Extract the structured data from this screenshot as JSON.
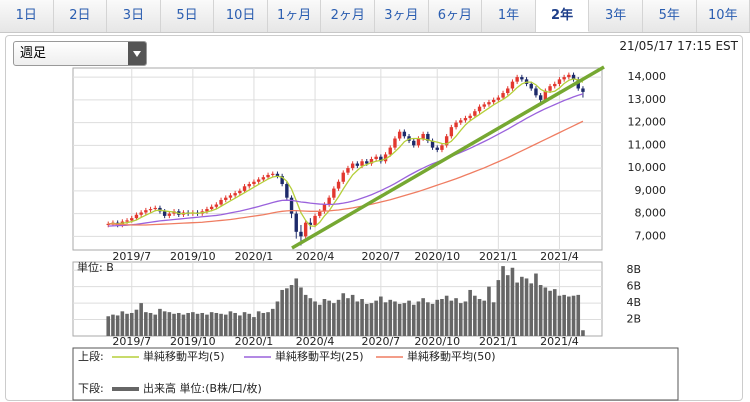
{
  "tabs": [
    {
      "label": "1日"
    },
    {
      "label": "2日"
    },
    {
      "label": "3日"
    },
    {
      "label": "5日"
    },
    {
      "label": "10日"
    },
    {
      "label": "1ヶ月"
    },
    {
      "label": "2ヶ月"
    },
    {
      "label": "3ヶ月"
    },
    {
      "label": "6ヶ月"
    },
    {
      "label": "1年"
    },
    {
      "label": "2年",
      "selected": true
    },
    {
      "label": "3年"
    },
    {
      "label": "5年"
    },
    {
      "label": "10年"
    }
  ],
  "period_select": "週足",
  "timestamp": "21/05/17 17:15 EST",
  "chart_data": [
    {
      "type": "candlestick",
      "legend_label": "上段:",
      "categories": [
        null,
        null,
        null,
        null,
        null,
        "2019/7",
        null,
        null,
        null,
        null,
        null,
        null,
        null,
        null,
        null,
        null,
        null,
        null,
        "2019/10",
        null,
        null,
        null,
        null,
        null,
        null,
        null,
        null,
        null,
        null,
        null,
        null,
        "2020/1",
        null,
        null,
        null,
        null,
        null,
        null,
        null,
        null,
        null,
        null,
        null,
        null,
        "2020/4",
        null,
        null,
        null,
        null,
        null,
        null,
        null,
        null,
        null,
        null,
        null,
        null,
        null,
        "2020/7",
        null,
        null,
        null,
        null,
        null,
        null,
        null,
        null,
        null,
        null,
        null,
        "2020/10",
        null,
        null,
        null,
        null,
        null,
        null,
        null,
        null,
        null,
        null,
        null,
        null,
        "2021/1",
        null,
        null,
        null,
        null,
        null,
        null,
        null,
        null,
        null,
        null,
        null,
        null,
        "2021/4",
        null,
        null,
        null,
        null,
        null
      ],
      "open": [
        7500,
        7550,
        7600,
        7500,
        7650,
        7700,
        7800,
        7950,
        8050,
        8150,
        8200,
        8250,
        8100,
        7900,
        8000,
        8100,
        7950,
        8050,
        8000,
        8050,
        8000,
        8100,
        8200,
        8300,
        8400,
        8600,
        8700,
        8800,
        8900,
        9000,
        9200,
        9300,
        9400,
        9500,
        9600,
        9700,
        9750,
        9650,
        9300,
        8700,
        8000,
        7200,
        7000,
        7600,
        7500,
        7900,
        8100,
        8400,
        8700,
        9100,
        9400,
        9800,
        10000,
        10200,
        10100,
        10300,
        10200,
        10400,
        10500,
        10300,
        10600,
        10900,
        11300,
        11600,
        11400,
        11200,
        11000,
        11300,
        11500,
        11200,
        10900,
        10800,
        11000,
        11400,
        11800,
        12000,
        12100,
        12200,
        12300,
        12500,
        12700,
        12800,
        12900,
        13000,
        13100,
        13300,
        13500,
        13800,
        14000,
        13900,
        13700,
        13500,
        13200,
        13000,
        13400,
        13600,
        13700,
        13900,
        14000,
        14100,
        13900,
        13500
      ],
      "high": [
        7650,
        7700,
        7700,
        7750,
        7800,
        7900,
        8050,
        8150,
        8250,
        8300,
        8350,
        8350,
        8200,
        8100,
        8200,
        8200,
        8150,
        8150,
        8150,
        8150,
        8200,
        8300,
        8400,
        8500,
        8700,
        8800,
        8900,
        9000,
        9100,
        9300,
        9400,
        9500,
        9600,
        9700,
        9800,
        9850,
        9850,
        9750,
        9400,
        8800,
        8100,
        7500,
        7700,
        7800,
        8000,
        8200,
        8500,
        8800,
        9200,
        9500,
        9900,
        10100,
        10300,
        10300,
        10400,
        10400,
        10500,
        10600,
        10600,
        10700,
        11000,
        11400,
        11700,
        11700,
        11500,
        11300,
        11400,
        11600,
        11600,
        11300,
        11000,
        11100,
        11500,
        11900,
        12100,
        12200,
        12300,
        12400,
        12600,
        12800,
        12900,
        13000,
        13100,
        13200,
        13400,
        13600,
        13900,
        14100,
        14100,
        14000,
        13800,
        13600,
        13300,
        13500,
        13700,
        13800,
        14000,
        14100,
        14200,
        14200,
        14000,
        13600
      ],
      "low": [
        7400,
        7450,
        7400,
        7400,
        7550,
        7600,
        7700,
        7850,
        7950,
        8050,
        8100,
        8000,
        7800,
        7800,
        7900,
        7850,
        7850,
        7900,
        7900,
        7900,
        7900,
        8000,
        8100,
        8200,
        8300,
        8500,
        8600,
        8700,
        8800,
        8900,
        9100,
        9200,
        9300,
        9400,
        9500,
        9600,
        9550,
        9200,
        8600,
        7800,
        6900,
        6600,
        6900,
        7300,
        7400,
        7800,
        8000,
        8300,
        8600,
        9000,
        9300,
        9700,
        9900,
        10000,
        10000,
        10100,
        10100,
        10300,
        10200,
        10200,
        10500,
        10800,
        11200,
        11300,
        11100,
        10900,
        10900,
        11200,
        11100,
        10800,
        10700,
        10700,
        10900,
        11300,
        11700,
        11900,
        12000,
        12100,
        12200,
        12400,
        12600,
        12700,
        12800,
        12900,
        13000,
        13200,
        13400,
        13700,
        13800,
        13600,
        13400,
        13100,
        12900,
        12900,
        13300,
        13500,
        13600,
        13800,
        13900,
        13800,
        13400,
        13100
      ],
      "close": [
        7550,
        7600,
        7500,
        7650,
        7700,
        7800,
        7950,
        8050,
        8150,
        8200,
        8250,
        8100,
        7900,
        8000,
        8100,
        7950,
        8050,
        8000,
        8050,
        8000,
        8100,
        8200,
        8300,
        8400,
        8600,
        8700,
        8800,
        8900,
        9000,
        9200,
        9300,
        9400,
        9500,
        9600,
        9700,
        9750,
        9650,
        9300,
        8700,
        8000,
        7200,
        7000,
        7600,
        7500,
        7900,
        8100,
        8400,
        8700,
        9100,
        9400,
        9800,
        10000,
        10200,
        10100,
        10300,
        10200,
        10400,
        10500,
        10300,
        10600,
        10900,
        11300,
        11600,
        11400,
        11200,
        11000,
        11300,
        11500,
        11200,
        10900,
        10800,
        11000,
        11400,
        11800,
        12000,
        12100,
        12200,
        12300,
        12500,
        12700,
        12800,
        12900,
        13000,
        13100,
        13300,
        13500,
        13800,
        14000,
        13900,
        13700,
        13500,
        13200,
        13000,
        13400,
        13600,
        13700,
        13900,
        14000,
        14100,
        13900,
        13500,
        13350
      ],
      "up_color": "#e2382f",
      "down_color": "#1d2a6a",
      "series": [
        {
          "name": "単純移動平均(5)",
          "color": "#b5cf3a",
          "values": [
            7550,
            7570,
            7550,
            7580,
            7600,
            7650,
            7720,
            7830,
            7930,
            8030,
            8130,
            8150,
            8120,
            8090,
            8070,
            8010,
            8000,
            8020,
            8030,
            8010,
            8040,
            8070,
            8130,
            8200,
            8320,
            8440,
            8560,
            8680,
            8800,
            8920,
            9040,
            9160,
            9280,
            9400,
            9520,
            9610,
            9640,
            9600,
            9420,
            9080,
            8570,
            8040,
            7700,
            7460,
            7440,
            7620,
            7900,
            8120,
            8440,
            8740,
            9080,
            9400,
            9700,
            9900,
            10080,
            10160,
            10240,
            10300,
            10340,
            10400,
            10540,
            10720,
            10920,
            11160,
            11280,
            11300,
            11300,
            11280,
            11240,
            11180,
            11140,
            11080,
            11060,
            11180,
            11400,
            11660,
            11900,
            12080,
            12220,
            12360,
            12500,
            12640,
            12780,
            12900,
            13020,
            13160,
            13340,
            13540,
            13700,
            13780,
            13780,
            13660,
            13460,
            13360,
            13340,
            13380,
            13520,
            13720,
            13860,
            13920,
            13880,
            13770
          ]
        },
        {
          "name": "単純移動平均(25)",
          "color": "#9a62dc",
          "values": [
            7450,
            7460,
            7470,
            7480,
            7490,
            7510,
            7530,
            7560,
            7590,
            7620,
            7650,
            7680,
            7700,
            7720,
            7740,
            7760,
            7780,
            7800,
            7820,
            7840,
            7860,
            7880,
            7900,
            7920,
            7950,
            7990,
            8030,
            8070,
            8110,
            8160,
            8210,
            8260,
            8310,
            8370,
            8430,
            8490,
            8540,
            8580,
            8590,
            8580,
            8550,
            8510,
            8490,
            8460,
            8440,
            8420,
            8410,
            8400,
            8410,
            8430,
            8460,
            8500,
            8550,
            8610,
            8680,
            8750,
            8830,
            8920,
            9010,
            9110,
            9210,
            9320,
            9440,
            9560,
            9680,
            9790,
            9900,
            10000,
            10100,
            10190,
            10270,
            10350,
            10430,
            10510,
            10600,
            10690,
            10780,
            10870,
            10970,
            11070,
            11170,
            11270,
            11380,
            11490,
            11600,
            11710,
            11830,
            11950,
            12070,
            12190,
            12300,
            12410,
            12510,
            12610,
            12700,
            12790,
            12880,
            12970,
            13050,
            13130,
            13200,
            13260
          ]
        },
        {
          "name": "単純移動平均(50)",
          "color": "#ef7d62",
          "values": [
            7550,
            7540,
            7530,
            7520,
            7510,
            7500,
            7500,
            7500,
            7500,
            7510,
            7520,
            7530,
            7540,
            7550,
            7560,
            7570,
            7580,
            7590,
            7600,
            7610,
            7620,
            7640,
            7660,
            7680,
            7700,
            7720,
            7740,
            7770,
            7800,
            7830,
            7860,
            7890,
            7920,
            7950,
            7990,
            8030,
            8070,
            8100,
            8120,
            8130,
            8130,
            8120,
            8110,
            8100,
            8100,
            8100,
            8110,
            8120,
            8140,
            8160,
            8190,
            8220,
            8250,
            8290,
            8330,
            8370,
            8410,
            8460,
            8510,
            8560,
            8610,
            8670,
            8730,
            8790,
            8850,
            8910,
            8970,
            9040,
            9110,
            9180,
            9250,
            9320,
            9390,
            9460,
            9530,
            9610,
            9690,
            9770,
            9850,
            9930,
            10010,
            10100,
            10190,
            10280,
            10370,
            10460,
            10560,
            10660,
            10760,
            10860,
            10960,
            11060,
            11160,
            11260,
            11360,
            11460,
            11560,
            11660,
            11760,
            11860,
            11960,
            12060
          ]
        }
      ],
      "ylim": [
        6400,
        14400
      ],
      "yticks": [
        {
          "value": 7000,
          "label": "7,000"
        },
        {
          "value": 8000,
          "label": "8,000"
        },
        {
          "value": 9000,
          "label": "9,000"
        },
        {
          "value": 10000,
          "label": "10,000"
        },
        {
          "value": 11000,
          "label": "11,000"
        },
        {
          "value": 12000,
          "label": "12,000"
        },
        {
          "value": 13000,
          "label": "13,000"
        },
        {
          "value": 14000,
          "label": "14,000"
        }
      ],
      "grid": true
    },
    {
      "type": "bar",
      "legend_label": "下段:",
      "y_label": "単位: B",
      "categories": [
        null,
        null,
        null,
        null,
        null,
        "2019/7",
        null,
        null,
        null,
        null,
        null,
        null,
        null,
        null,
        null,
        null,
        null,
        null,
        "2019/10",
        null,
        null,
        null,
        null,
        null,
        null,
        null,
        null,
        null,
        null,
        null,
        null,
        "2020/1",
        null,
        null,
        null,
        null,
        null,
        null,
        null,
        null,
        null,
        null,
        null,
        null,
        "2020/4",
        null,
        null,
        null,
        null,
        null,
        null,
        null,
        null,
        null,
        null,
        null,
        null,
        null,
        "2020/7",
        null,
        null,
        null,
        null,
        null,
        null,
        null,
        null,
        null,
        null,
        null,
        "2020/10",
        null,
        null,
        null,
        null,
        null,
        null,
        null,
        null,
        null,
        null,
        null,
        null,
        "2021/1",
        null,
        null,
        null,
        null,
        null,
        null,
        null,
        null,
        null,
        null,
        null,
        null,
        "2021/4",
        null,
        null,
        null,
        null,
        null
      ],
      "series": [
        {
          "name": "出来高 単位:(B株/口/枚)",
          "color": "#666666",
          "values": [
            2.4,
            2.6,
            2.5,
            3.0,
            2.7,
            2.8,
            3.2,
            4.0,
            2.9,
            2.8,
            2.6,
            3.3,
            3.0,
            2.9,
            2.7,
            2.8,
            2.6,
            2.8,
            2.9,
            2.7,
            2.8,
            2.6,
            2.9,
            2.8,
            2.7,
            2.6,
            3.0,
            2.8,
            2.5,
            2.9,
            2.7,
            2.3,
            3.0,
            2.8,
            2.9,
            3.3,
            4.2,
            5.6,
            5.8,
            6.2,
            7.0,
            5.9,
            5.0,
            4.6,
            4.2,
            3.8,
            4.5,
            4.3,
            4.0,
            4.4,
            5.2,
            4.6,
            5.0,
            4.2,
            4.5,
            3.9,
            4.0,
            4.3,
            4.8,
            4.1,
            4.4,
            4.2,
            3.9,
            4.0,
            4.3,
            3.8,
            4.2,
            4.6,
            4.1,
            3.9,
            4.4,
            4.5,
            4.9,
            4.3,
            4.6,
            4.0,
            4.2,
            5.6,
            4.9,
            4.5,
            4.3,
            6.0,
            4.1,
            6.8,
            8.5,
            7.4,
            8.3,
            6.5,
            7.2,
            7.0,
            6.4,
            7.6,
            6.2,
            5.9,
            5.5,
            5.7,
            4.9,
            5.0,
            4.8,
            4.9,
            5.0,
            0.7
          ]
        }
      ],
      "ylim": [
        0,
        9
      ],
      "yticks": [
        {
          "value": 2,
          "label": "2B"
        },
        {
          "value": 4,
          "label": "4B"
        },
        {
          "value": 6,
          "label": "6B"
        },
        {
          "value": 8,
          "label": "8B"
        }
      ],
      "grid": true
    }
  ]
}
